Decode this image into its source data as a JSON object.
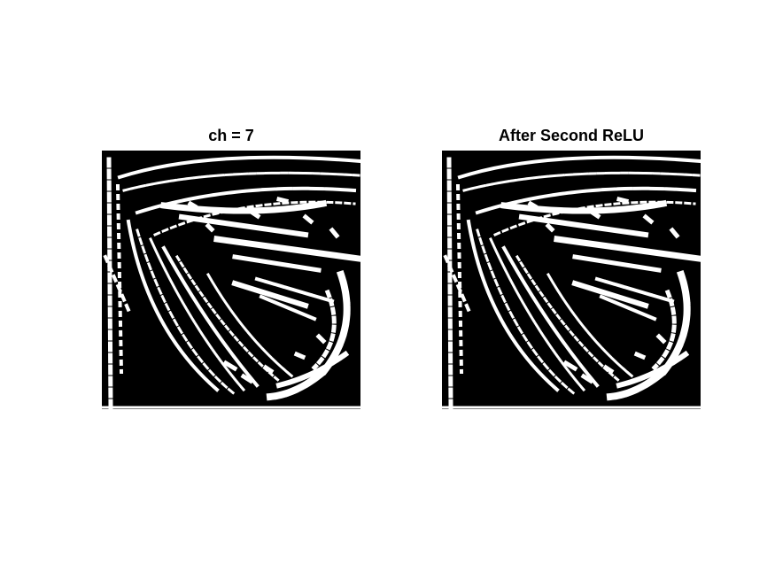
{
  "figure": {
    "panels": [
      {
        "title": "ch = 7",
        "image": "binary-feature-map"
      },
      {
        "title": "After Second ReLU",
        "image": "binary-feature-map"
      }
    ]
  }
}
